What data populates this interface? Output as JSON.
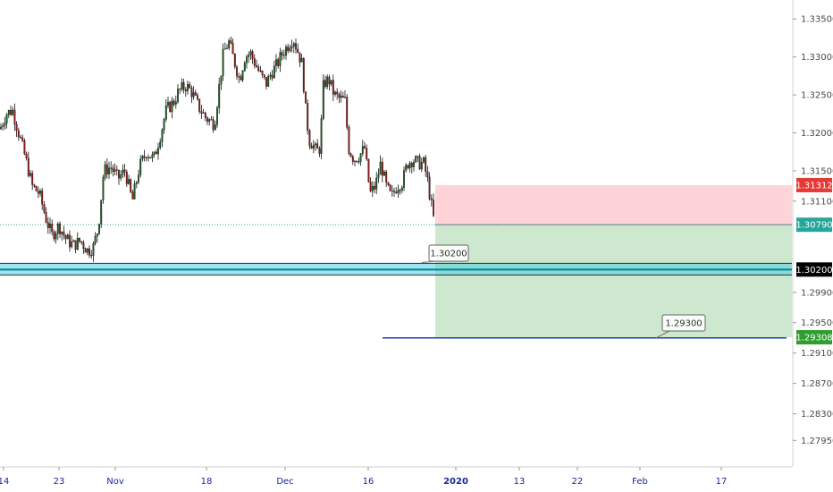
{
  "chart_data": {
    "type": "candlestick",
    "instrument_scale": "price",
    "y_range": [
      1.276,
      1.3375
    ],
    "y_ticks": [
      {
        "value": 1.335,
        "label": "1.33500"
      },
      {
        "value": 1.33,
        "label": "1.33000"
      },
      {
        "value": 1.325,
        "label": "1.32500"
      },
      {
        "value": 1.32,
        "label": "1.32000"
      },
      {
        "value": 1.315,
        "label": "1.31500"
      },
      {
        "value": 1.311,
        "label": "1.31100"
      },
      {
        "value": 1.299,
        "label": "1.29900"
      },
      {
        "value": 1.295,
        "label": "1.29500"
      },
      {
        "value": 1.291,
        "label": "1.29100"
      },
      {
        "value": 1.287,
        "label": "1.28700"
      },
      {
        "value": 1.283,
        "label": "1.28300"
      },
      {
        "value": 1.2795,
        "label": "1.27950"
      }
    ],
    "x_ticks": [
      {
        "label": "14",
        "bold": false
      },
      {
        "label": "23",
        "bold": false
      },
      {
        "label": "Nov",
        "bold": false
      },
      {
        "label": "18",
        "bold": false
      },
      {
        "label": "Dec",
        "bold": false
      },
      {
        "label": "16",
        "bold": false
      },
      {
        "label": "2020",
        "bold": true
      },
      {
        "label": "13",
        "bold": false
      },
      {
        "label": "22",
        "bold": false
      },
      {
        "label": "Feb",
        "bold": false
      },
      {
        "label": "17",
        "bold": false
      }
    ],
    "close_path": [
      [
        0,
        1.3205
      ],
      [
        7,
        1.3225
      ],
      [
        14,
        1.323
      ],
      [
        22,
        1.3195
      ],
      [
        30,
        1.316
      ],
      [
        36,
        1.313
      ],
      [
        44,
        1.312
      ],
      [
        52,
        1.3085
      ],
      [
        58,
        1.3065
      ],
      [
        66,
        1.3078
      ],
      [
        74,
        1.306
      ],
      [
        82,
        1.3052
      ],
      [
        90,
        1.3058
      ],
      [
        98,
        1.3045
      ],
      [
        104,
        1.3048
      ],
      [
        110,
        1.3075
      ],
      [
        116,
        1.315
      ],
      [
        124,
        1.3155
      ],
      [
        132,
        1.314
      ],
      [
        140,
        1.315
      ],
      [
        148,
        1.311
      ],
      [
        156,
        1.3155
      ],
      [
        164,
        1.3175
      ],
      [
        172,
        1.3165
      ],
      [
        180,
        1.32
      ],
      [
        186,
        1.323
      ],
      [
        194,
        1.324
      ],
      [
        200,
        1.3255
      ],
      [
        208,
        1.3262
      ],
      [
        214,
        1.3255
      ],
      [
        222,
        1.3235
      ],
      [
        230,
        1.322
      ],
      [
        236,
        1.3215
      ],
      [
        240,
        1.3212
      ],
      [
        244,
        1.325
      ],
      [
        250,
        1.3305
      ],
      [
        256,
        1.332
      ],
      [
        262,
        1.3295
      ],
      [
        268,
        1.327
      ],
      [
        274,
        1.33
      ],
      [
        280,
        1.3305
      ],
      [
        286,
        1.329
      ],
      [
        292,
        1.3275
      ],
      [
        298,
        1.3265
      ],
      [
        304,
        1.328
      ],
      [
        310,
        1.329
      ],
      [
        316,
        1.3305
      ],
      [
        322,
        1.3315
      ],
      [
        328,
        1.3325
      ],
      [
        334,
        1.3305
      ],
      [
        338,
        1.329
      ],
      [
        342,
        1.323
      ],
      [
        346,
        1.319
      ],
      [
        350,
        1.3185
      ],
      [
        354,
        1.3175
      ],
      [
        358,
        1.318
      ],
      [
        362,
        1.3265
      ],
      [
        368,
        1.327
      ],
      [
        374,
        1.325
      ],
      [
        380,
        1.3245
      ],
      [
        386,
        1.3242
      ],
      [
        390,
        1.318
      ],
      [
        396,
        1.3165
      ],
      [
        402,
        1.317
      ],
      [
        408,
        1.318
      ],
      [
        414,
        1.312
      ],
      [
        420,
        1.313
      ],
      [
        426,
        1.316
      ],
      [
        432,
        1.313
      ],
      [
        438,
        1.3115
      ],
      [
        444,
        1.313
      ],
      [
        450,
        1.3135
      ],
      [
        456,
        1.316
      ],
      [
        462,
        1.3165
      ],
      [
        468,
        1.316
      ],
      [
        474,
        1.316
      ],
      [
        478,
        1.314
      ],
      [
        482,
        1.311
      ],
      [
        486,
        1.308
      ]
    ],
    "current_price": {
      "value": 1.3079,
      "label": "1.30790",
      "color": "#26a69a"
    },
    "stop_loss": {
      "value": 1.31312,
      "label": "1.31312",
      "color": "#ef5350",
      "zone_color": "#ffcdd2"
    },
    "entry": {
      "value": 1.3079
    },
    "take_profit": {
      "value": 1.29308,
      "label": "1.29308",
      "color": "#1e8c1e",
      "zone_color": "#c8e6c9"
    },
    "support_level": {
      "value": 1.302,
      "label": "1.30200",
      "callout": "1.30200",
      "color": "#26c6da"
    },
    "target_line": {
      "value": 1.293,
      "callout": "1.29300",
      "color": "#1a3fa8"
    }
  }
}
